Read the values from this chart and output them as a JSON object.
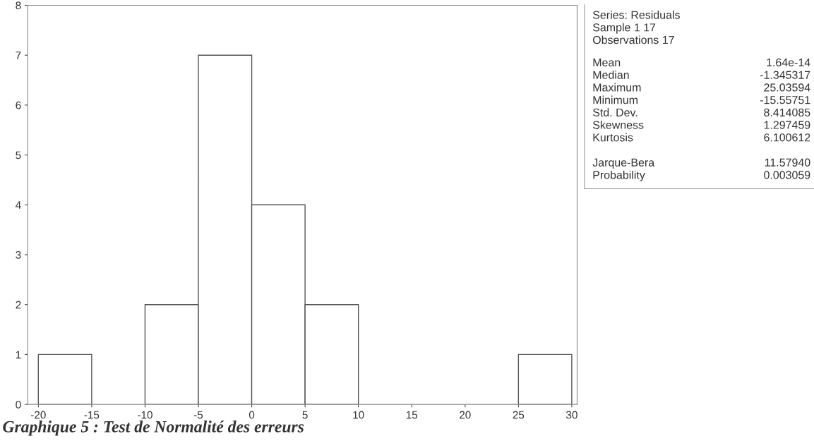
{
  "chart_data": [
    {
      "type": "histogram",
      "bins": [
        -20,
        -15,
        -10,
        -5,
        0,
        5,
        10,
        15,
        20,
        25,
        30
      ],
      "values": [
        1,
        0,
        2,
        7,
        4,
        2,
        0,
        0,
        0,
        1
      ],
      "color": "#ffffff",
      "xlim": [
        -21,
        30.5
      ],
      "xticks": [
        -20,
        -15,
        -10,
        -5,
        0,
        5,
        10,
        15,
        20,
        25,
        30
      ],
      "ylim": [
        0,
        8
      ],
      "yticks": [
        0,
        1,
        2,
        3,
        4,
        5,
        6,
        7,
        8
      ],
      "annotations": [
        "Graphique 5 : Test de Normalité des erreurs"
      ]
    },
    {
      "type": "other",
      "annotations": [
        "Series: Residuals",
        "Sample 1 17",
        "Observations 17",
        "Mean",
        "1.64e-14",
        "Median",
        "-1.345317",
        "Maximum",
        "25.03594",
        "Minimum",
        "-15.55751",
        "Std. Dev.",
        "8.414085",
        "Skewness",
        "1.297459",
        "Kurtosis",
        "6.100612",
        "Jarque-Bera",
        "11.57940",
        "Probability",
        "0.003059"
      ]
    }
  ]
}
